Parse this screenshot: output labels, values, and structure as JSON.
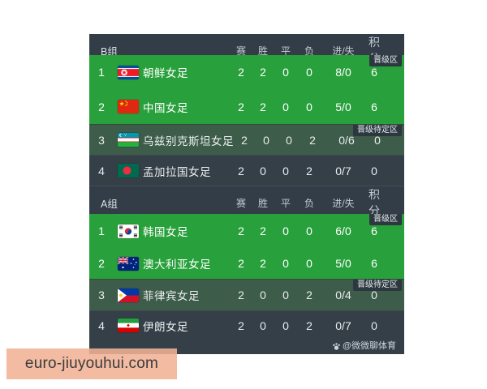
{
  "table": {
    "colors": {
      "promotion_bg": "#28a03c",
      "pending_bg": "#3d5c49",
      "row_dark_bg": "#343f48",
      "header_bg": "#323d47",
      "badge_bg": "#2c3740",
      "site_box_bg": "#f0b295"
    },
    "columns": [
      "赛",
      "胜",
      "平",
      "负",
      "进/失",
      "积分"
    ],
    "groups": [
      {
        "label": "B组",
        "rows": [
          {
            "rank": "1",
            "team": "朝鲜女足",
            "flag": "north-korea",
            "played": "2",
            "won": "2",
            "drawn": "0",
            "lost": "0",
            "goals": "8/0",
            "points": "6",
            "zone": "promotion",
            "badge": "晋级区"
          },
          {
            "rank": "2",
            "team": "中国女足",
            "flag": "china",
            "played": "2",
            "won": "2",
            "drawn": "0",
            "lost": "0",
            "goals": "5/0",
            "points": "6",
            "zone": "promotion",
            "badge": ""
          },
          {
            "rank": "3",
            "team": "乌兹别克斯坦女足",
            "flag": "uzbekistan",
            "played": "2",
            "won": "0",
            "drawn": "0",
            "lost": "2",
            "goals": "0/6",
            "points": "0",
            "zone": "pending",
            "badge": "晋级待定区"
          },
          {
            "rank": "4",
            "team": "孟加拉国女足",
            "flag": "bangladesh",
            "played": "2",
            "won": "0",
            "drawn": "0",
            "lost": "2",
            "goals": "0/7",
            "points": "0",
            "zone": "none",
            "badge": ""
          }
        ]
      },
      {
        "label": "A组",
        "rows": [
          {
            "rank": "1",
            "team": "韩国女足",
            "flag": "south-korea",
            "played": "2",
            "won": "2",
            "drawn": "0",
            "lost": "0",
            "goals": "6/0",
            "points": "6",
            "zone": "promotion",
            "badge": "晋级区"
          },
          {
            "rank": "2",
            "team": "澳大利亚女足",
            "flag": "australia",
            "played": "2",
            "won": "2",
            "drawn": "0",
            "lost": "0",
            "goals": "5/0",
            "points": "6",
            "zone": "promotion",
            "badge": ""
          },
          {
            "rank": "3",
            "team": "菲律宾女足",
            "flag": "philippines",
            "played": "2",
            "won": "0",
            "drawn": "0",
            "lost": "2",
            "goals": "0/4",
            "points": "0",
            "zone": "pending",
            "badge": "晋级待定区"
          },
          {
            "rank": "4",
            "team": "伊朗女足",
            "flag": "iran",
            "played": "2",
            "won": "0",
            "drawn": "0",
            "lost": "2",
            "goals": "0/7",
            "points": "0",
            "zone": "none",
            "badge": ""
          }
        ]
      }
    ]
  },
  "watermarks": {
    "site": "euro-jiuyouhui.com",
    "channel": "@微微聊体育",
    "channel_icon": "paw-icon"
  }
}
